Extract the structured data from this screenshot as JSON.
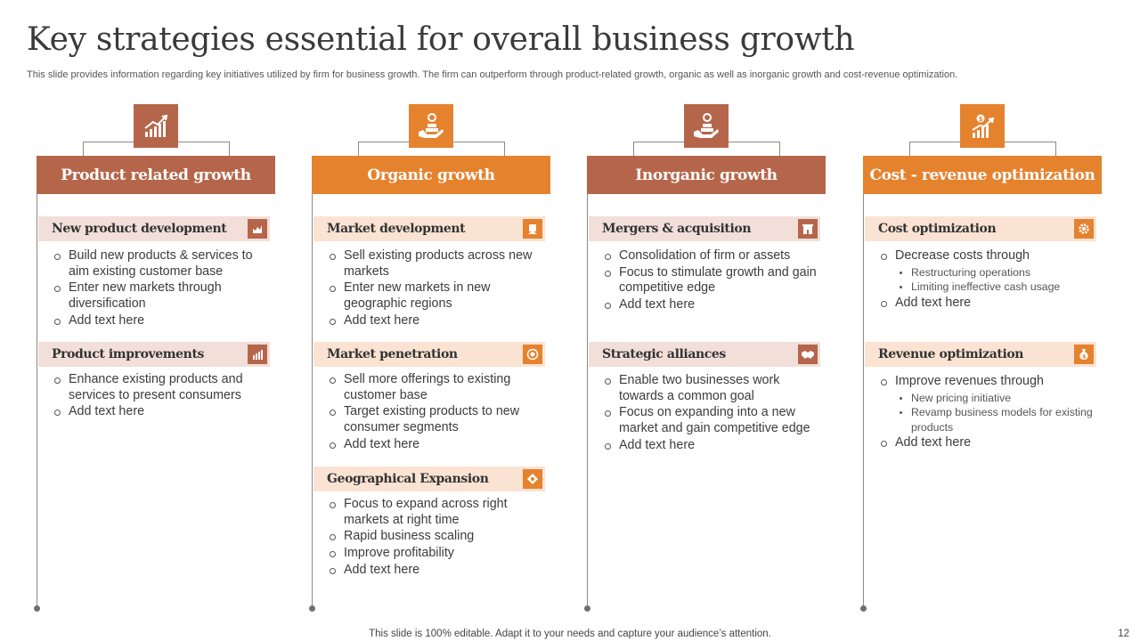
{
  "slide": {
    "title": "Key strategies essential for overall business growth",
    "subtitle": "This slide provides information regarding key initiatives utilized by firm for business growth. The firm can outperform through product-related growth, organic as well as inorganic growth and cost-revenue optimization.",
    "footer": "This slide is 100% editable. Adapt it to your needs and capture your audience’s attention.",
    "page_number": "12"
  },
  "colors": {
    "rust": "#b5664a",
    "orange": "#e5822e",
    "rust_light": "#f2dfd9",
    "orange_light": "#fbe3d3"
  },
  "columns": [
    {
      "header": "Product related growth",
      "icon": "growth-chart-icon",
      "sections": [
        {
          "title": "New product development",
          "icon": "product-icon",
          "items": [
            {
              "text": "Build new products & services to aim existing customer base"
            },
            {
              "text": "Enter new markets through diversification"
            },
            {
              "text": "Add text here"
            }
          ]
        },
        {
          "title": "Product improvements",
          "icon": "bar-chart-icon",
          "items": [
            {
              "text": "Enhance existing products and services to present consumers"
            },
            {
              "text": "Add text here"
            }
          ]
        }
      ]
    },
    {
      "header": "Organic growth",
      "icon": "hand-money-icon",
      "sections": [
        {
          "title": "Market development",
          "icon": "market-icon",
          "items": [
            {
              "text": "Sell existing products across new markets"
            },
            {
              "text": "Enter new markets in new geographic regions"
            },
            {
              "text": "Add text here"
            }
          ]
        },
        {
          "title": "Market penetration",
          "icon": "target-icon",
          "items": [
            {
              "text": "Sell more offerings to existing customer base"
            },
            {
              "text": "Target existing products to new consumer segments"
            },
            {
              "text": "Add text here"
            }
          ]
        },
        {
          "title": "Geographical Expansion",
          "icon": "globe-icon",
          "items": [
            {
              "text": "Focus to expand across right markets at right time"
            },
            {
              "text": "Rapid business scaling"
            },
            {
              "text": "Improve profitability"
            },
            {
              "text": "Add text here"
            }
          ]
        }
      ]
    },
    {
      "header": "Inorganic growth",
      "icon": "hand-money-icon",
      "sections": [
        {
          "title": "Mergers & acquisition",
          "icon": "building-icon",
          "items": [
            {
              "text": "Consolidation of firm or assets"
            },
            {
              "text": "Focus to stimulate growth and gain competitive edge"
            },
            {
              "text": "Add text here"
            }
          ]
        },
        {
          "title": "Strategic alliances",
          "icon": "handshake-icon",
          "items": [
            {
              "text": "Enable two businesses work towards a common goal"
            },
            {
              "text": "Focus on expanding into a new market and gain competitive edge"
            },
            {
              "text": "Add text here"
            }
          ]
        }
      ]
    },
    {
      "header": "Cost - revenue optimization",
      "icon": "dollar-growth-icon",
      "sections": [
        {
          "title": "Cost optimization",
          "icon": "gear-icon",
          "items": [
            {
              "text": "Decrease costs through",
              "sub": [
                "Restructuring operations",
                "Limiting ineffective  cash usage"
              ]
            },
            {
              "text": "Add text here"
            }
          ]
        },
        {
          "title": "Revenue optimization",
          "icon": "money-bag-icon",
          "items": [
            {
              "text": "Improve revenues through",
              "sub": [
                "New pricing initiative",
                "Revamp business models for existing products"
              ]
            },
            {
              "text": "Add text here"
            }
          ]
        }
      ]
    }
  ]
}
